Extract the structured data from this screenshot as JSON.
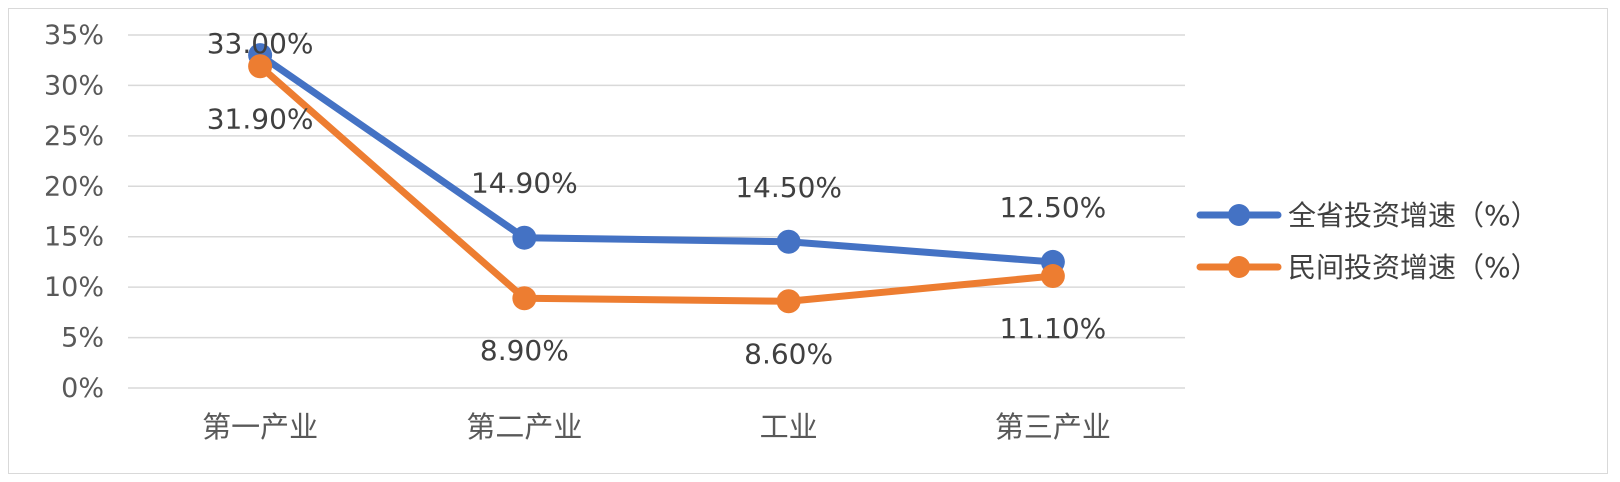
{
  "chart_data": {
    "type": "line",
    "categories": [
      "第一产业",
      "第二产业",
      "工业",
      "第三产业"
    ],
    "series": [
      {
        "name": "全省投资增速（%）",
        "values": [
          33.0,
          14.9,
          14.5,
          12.5
        ],
        "labels": [
          "33.00%",
          "14.90%",
          "14.50%",
          "12.50%"
        ],
        "color": "#4472c4"
      },
      {
        "name": "民间投资增速（%）",
        "values": [
          31.9,
          8.9,
          8.6,
          11.1
        ],
        "labels": [
          "31.90%",
          "8.90%",
          "8.60%",
          "11.10%"
        ],
        "color": "#ed7d31"
      }
    ],
    "y_ticks": [
      "0%",
      "5%",
      "10%",
      "15%",
      "20%",
      "25%",
      "30%",
      "35%"
    ],
    "ylim": [
      0,
      35
    ],
    "grid": true,
    "legend": "right"
  }
}
